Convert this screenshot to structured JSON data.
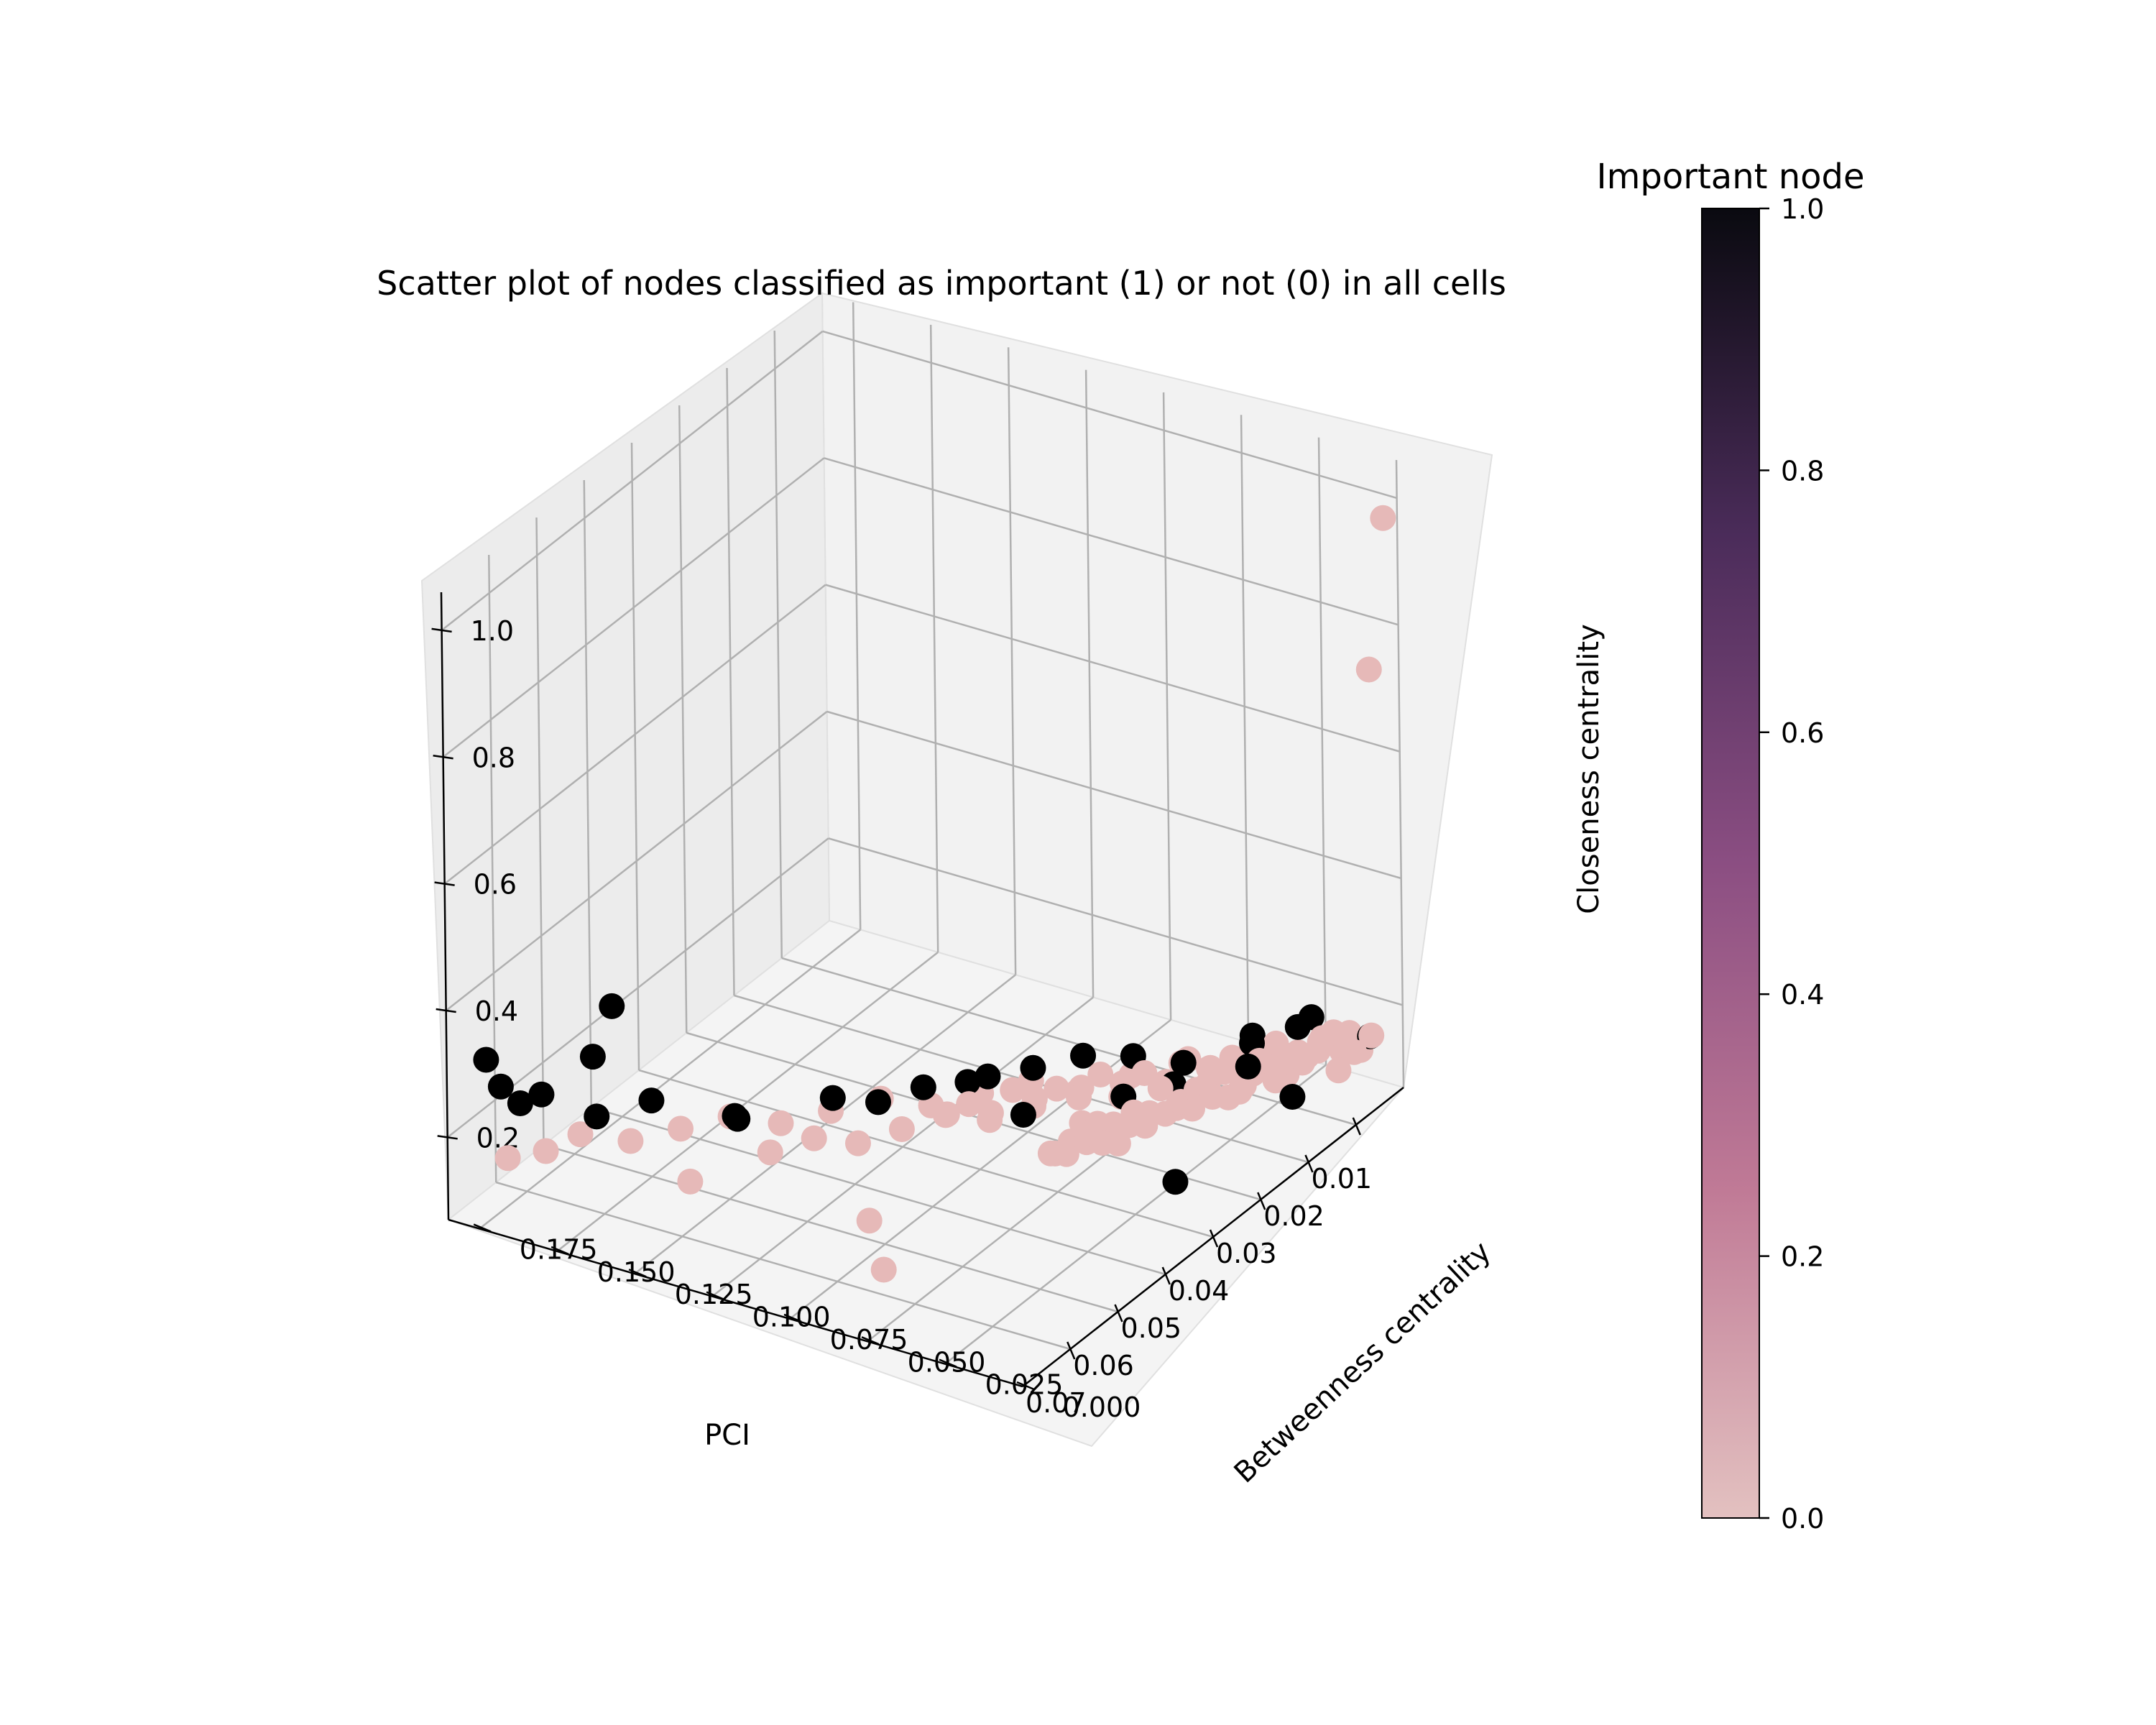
{
  "chart_data": {
    "type": "scatter",
    "projection": "3d",
    "title": "Scatter plot of nodes classified as important (1) or not (0) in all cells",
    "xlabel": "PCI",
    "ylabel": "Betweenness centrality",
    "zlabel": "Closeness centrality",
    "xlim": [
      0.0,
      0.08
    ],
    "ylim": [
      0.0,
      0.185
    ],
    "zlim": [
      0.07,
      1.06
    ],
    "x_ticks": [
      "0.01",
      "0.02",
      "0.03",
      "0.04",
      "0.05",
      "0.06",
      "0.07"
    ],
    "y_ticks": [
      "0.000",
      "0.025",
      "0.050",
      "0.075",
      "0.100",
      "0.125",
      "0.150",
      "0.175"
    ],
    "z_ticks": [
      "0.2",
      "0.4",
      "0.6",
      "0.8",
      "1.0"
    ],
    "grid": true,
    "colorbar": {
      "title": "Important node",
      "range": [
        0.0,
        1.0
      ],
      "ticks": [
        "0.0",
        "0.2",
        "0.4",
        "0.6",
        "0.8",
        "1.0"
      ],
      "colors": [
        "#e3c1c0",
        "#c07a96",
        "#8b4e82",
        "#4b2c5a",
        "#0a0a10"
      ]
    },
    "colors": {
      "not_important": "#e6b9b8",
      "important": "#000000"
    },
    "series": [
      {
        "important": 0,
        "x": [
          0.004,
          0.005,
          0.006,
          0.007,
          0.008,
          0.009,
          0.01,
          0.011,
          0.012,
          0.013,
          0.014,
          0.015,
          0.016,
          0.017,
          0.018,
          0.019,
          0.02,
          0.021,
          0.022,
          0.023,
          0.024,
          0.025,
          0.026,
          0.027,
          0.028,
          0.029,
          0.03,
          0.031,
          0.032,
          0.033,
          0.034,
          0.035,
          0.036,
          0.037,
          0.038,
          0.039,
          0.04,
          0.041,
          0.042,
          0.043,
          0.044,
          0.045,
          0.005,
          0.007,
          0.009,
          0.011,
          0.013,
          0.015,
          0.017,
          0.019,
          0.021,
          0.023,
          0.025,
          0.027,
          0.029,
          0.031,
          0.033,
          0.035,
          0.037,
          0.039,
          0.041,
          0.008,
          0.012,
          0.016,
          0.02,
          0.024,
          0.028,
          0.032,
          0.036,
          0.04,
          0.044,
          0.048,
          0.052,
          0.056,
          0.065,
          0.006,
          0.01,
          0.014,
          0.018,
          0.022,
          0.026,
          0.03,
          0.034,
          0.038,
          0.042,
          0.046,
          0.05,
          0.054,
          0.058,
          0.062,
          0.066,
          0.072,
          0.003,
          0.001,
          0.06,
          0.07
        ],
        "y": [
          0.004,
          0.006,
          0.008,
          0.005,
          0.01,
          0.007,
          0.012,
          0.009,
          0.014,
          0.011,
          0.016,
          0.013,
          0.018,
          0.015,
          0.02,
          0.017,
          0.022,
          0.019,
          0.024,
          0.021,
          0.026,
          0.023,
          0.028,
          0.025,
          0.03,
          0.027,
          0.032,
          0.029,
          0.034,
          0.031,
          0.036,
          0.033,
          0.038,
          0.035,
          0.04,
          0.037,
          0.042,
          0.039,
          0.044,
          0.041,
          0.046,
          0.043,
          0.012,
          0.016,
          0.02,
          0.024,
          0.028,
          0.032,
          0.036,
          0.04,
          0.044,
          0.048,
          0.052,
          0.056,
          0.06,
          0.064,
          0.068,
          0.072,
          0.076,
          0.08,
          0.084,
          0.022,
          0.03,
          0.038,
          0.046,
          0.054,
          0.062,
          0.07,
          0.078,
          0.086,
          0.094,
          0.102,
          0.11,
          0.118,
          0.13,
          0.03,
          0.04,
          0.05,
          0.06,
          0.07,
          0.08,
          0.09,
          0.1,
          0.11,
          0.12,
          0.13,
          0.14,
          0.15,
          0.16,
          0.17,
          0.175,
          0.178,
          0.005,
          0.003,
          0.08,
          0.06
        ],
        "z": [
          0.17,
          0.15,
          0.18,
          0.16,
          0.19,
          0.14,
          0.17,
          0.2,
          0.16,
          0.18,
          0.15,
          0.19,
          0.17,
          0.16,
          0.18,
          0.2,
          0.15,
          0.17,
          0.19,
          0.16,
          0.18,
          0.17,
          0.15,
          0.19,
          0.16,
          0.18,
          0.2,
          0.17,
          0.15,
          0.18,
          0.16,
          0.19,
          0.17,
          0.15,
          0.18,
          0.16,
          0.19,
          0.17,
          0.15,
          0.18,
          0.16,
          0.17,
          0.14,
          0.16,
          0.15,
          0.17,
          0.14,
          0.16,
          0.15,
          0.17,
          0.14,
          0.16,
          0.15,
          0.17,
          0.14,
          0.16,
          0.15,
          0.17,
          0.14,
          0.16,
          0.15,
          0.13,
          0.12,
          0.14,
          0.13,
          0.12,
          0.14,
          0.13,
          0.12,
          0.14,
          0.13,
          0.12,
          0.14,
          0.13,
          0.12,
          0.11,
          0.1,
          0.12,
          0.11,
          0.1,
          0.12,
          0.11,
          0.1,
          0.12,
          0.11,
          0.1,
          0.12,
          0.11,
          0.1,
          0.12,
          0.11,
          0.13,
          0.74,
          0.97,
          0.1,
          0.11
        ]
      },
      {
        "important": 1,
        "x": [
          0.003,
          0.009,
          0.01,
          0.012,
          0.016,
          0.02,
          0.022,
          0.024,
          0.026,
          0.028,
          0.03,
          0.032,
          0.035,
          0.038,
          0.042,
          0.045,
          0.048,
          0.055,
          0.06,
          0.065,
          0.07,
          0.056,
          0.05,
          0.036,
          0.072,
          0.075,
          0.068,
          0.062,
          0.018,
          0.04
        ],
        "y": [
          0.006,
          0.02,
          0.014,
          0.03,
          0.024,
          0.04,
          0.016,
          0.05,
          0.034,
          0.06,
          0.044,
          0.07,
          0.08,
          0.064,
          0.09,
          0.1,
          0.11,
          0.13,
          0.15,
          0.16,
          0.17,
          0.175,
          0.178,
          0.085,
          0.18,
          0.18,
          0.18,
          0.12,
          0.008,
          0.012
        ],
        "z": [
          0.16,
          0.19,
          0.22,
          0.18,
          0.2,
          0.17,
          0.21,
          0.19,
          0.18,
          0.2,
          0.17,
          0.19,
          0.18,
          0.16,
          0.19,
          0.17,
          0.18,
          0.16,
          0.19,
          0.18,
          0.23,
          0.2,
          0.24,
          0.17,
          0.24,
          0.3,
          0.19,
          0.22,
          0.15,
          0.14
        ]
      }
    ]
  }
}
